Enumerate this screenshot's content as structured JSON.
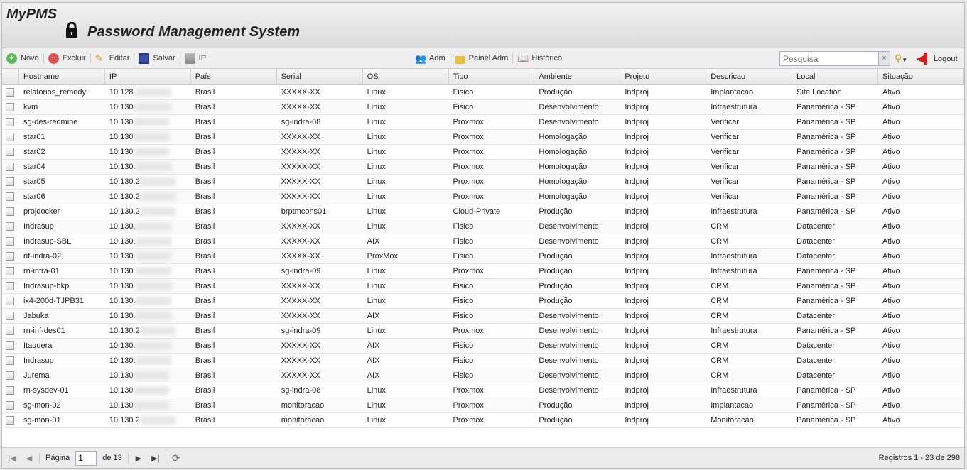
{
  "header": {
    "brand": "MyPMS",
    "system_title": "Password Management System"
  },
  "toolbar": {
    "novo": "Novo",
    "excluir": "Excluir",
    "editar": "Editar",
    "salvar": "Salvar",
    "ip": "IP",
    "adm": "Adm",
    "painel_adm": "Painel Adm",
    "historico": "Histórico",
    "search_placeholder": "Pesquisa",
    "logout": "Logout"
  },
  "columns": [
    "Hostname",
    "IP",
    "País",
    "Serial",
    "OS",
    "Tipo",
    "Ambiente",
    "Projeto",
    "Descricao",
    "Local",
    "Situação"
  ],
  "rows": [
    [
      "relatorios_remedy",
      "10.128.",
      "Brasil",
      "XXXXX-XX",
      "Linux",
      "Fisico",
      "Produção",
      "Indproj",
      "Implantacao",
      "Site Location",
      "Ativo"
    ],
    [
      "kvm",
      "10.130.",
      "Brasil",
      "XXXXX-XX",
      "Linux",
      "Fisico",
      "Desenvolvimento",
      "Indproj",
      "Infraestrutura",
      "Panamérica - SP",
      "Ativo"
    ],
    [
      "sg-des-redmine",
      "10.130",
      "Brasil",
      "sg-indra-08",
      "Linux",
      "Proxmox",
      "Desenvolvimento",
      "Indproj",
      "Verificar",
      "Panamérica - SP",
      "Ativo"
    ],
    [
      "star01",
      "10.130",
      "Brasil",
      "XXXXX-XX",
      "Linux",
      "Proxmox",
      "Homologação",
      "Indproj",
      "Verificar",
      "Panamérica - SP",
      "Ativo"
    ],
    [
      "star02",
      "10.130",
      "Brasil",
      "XXXXX-XX",
      "Linux",
      "Proxmox",
      "Homologação",
      "Indproj",
      "Verificar",
      "Panamérica - SP",
      "Ativo"
    ],
    [
      "star04",
      "10.130.",
      "Brasil",
      "XXXXX-XX",
      "Linux",
      "Proxmox",
      "Homologação",
      "Indproj",
      "Verificar",
      "Panamérica - SP",
      "Ativo"
    ],
    [
      "star05",
      "10.130.2",
      "Brasil",
      "XXXXX-XX",
      "Linux",
      "Proxmox",
      "Homologação",
      "Indproj",
      "Verificar",
      "Panamérica - SP",
      "Ativo"
    ],
    [
      "star06",
      "10.130.2",
      "Brasil",
      "XXXXX-XX",
      "Linux",
      "Proxmox",
      "Homologação",
      "Indproj",
      "Verificar",
      "Panamérica - SP",
      "Ativo"
    ],
    [
      "projdocker",
      "10.130.2",
      "Brasil",
      "brptmcons01",
      "Linux",
      "Cloud-Private",
      "Produção",
      "Indproj",
      "Infraestrutura",
      "Panamérica - SP",
      "Ativo"
    ],
    [
      "Indrasup",
      "10.130.",
      "Brasil",
      "XXXXX-XX",
      "Linux",
      "Fisico",
      "Desenvolvimento",
      "Indproj",
      "CRM",
      "Datacenter",
      "Ativo"
    ],
    [
      "Indrasup-SBL",
      "10.130.",
      "Brasil",
      "XXXXX-XX",
      "AIX",
      "Fisico",
      "Desenvolvimento",
      "Indproj",
      "CRM",
      "Datacenter",
      "Ativo"
    ],
    [
      "rif-indra-02",
      "10.130.",
      "Brasil",
      "XXXXX-XX",
      "ProxMox",
      "Fisico",
      "Produção",
      "Indproj",
      "Infraestrutura",
      "Datacenter",
      "Ativo"
    ],
    [
      "rn-infra-01",
      "10.130.",
      "Brasil",
      "sg-indra-09",
      "Linux",
      "Proxmox",
      "Produção",
      "Indproj",
      "Infraestrutura",
      "Panamérica - SP",
      "Ativo"
    ],
    [
      "Indrasup-bkp",
      "10.130.",
      "Brasil",
      "XXXXX-XX",
      "Linux",
      "Fisico",
      "Produção",
      "Indproj",
      "CRM",
      "Panamérica - SP",
      "Ativo"
    ],
    [
      "ix4-200d-TJPB31",
      "10.130.",
      "Brasil",
      "XXXXX-XX",
      "Linux",
      "Fisico",
      "Produção",
      "Indproj",
      "CRM",
      "Panamérica - SP",
      "Ativo"
    ],
    [
      "Jabuka",
      "10.130.",
      "Brasil",
      "XXXXX-XX",
      "AIX",
      "Fisico",
      "Desenvolvimento",
      "Indproj",
      "CRM",
      "Datacenter",
      "Ativo"
    ],
    [
      "rn-inf-des01",
      "10.130.2",
      "Brasil",
      "sg-indra-09",
      "Linux",
      "Proxmox",
      "Desenvolvimento",
      "Indproj",
      "Infraestrutura",
      "Panamérica - SP",
      "Ativo"
    ],
    [
      "Itaquera",
      "10.130.",
      "Brasil",
      "XXXXX-XX",
      "AIX",
      "Fisico",
      "Desenvolvimento",
      "Indproj",
      "CRM",
      "Datacenter",
      "Ativo"
    ],
    [
      "Indrasup",
      "10.130.",
      "Brasil",
      "XXXXX-XX",
      "AIX",
      "Fisico",
      "Desenvolvimento",
      "Indproj",
      "CRM",
      "Datacenter",
      "Ativo"
    ],
    [
      "Jurema",
      "10.130",
      "Brasil",
      "XXXXX-XX",
      "AIX",
      "Fisico",
      "Desenvolvimento",
      "Indproj",
      "CRM",
      "Datacenter",
      "Ativo"
    ],
    [
      "rn-sysdev-01",
      "10.130",
      "Brasil",
      "sg-indra-08",
      "Linux",
      "Proxmox",
      "Desenvolvimento",
      "Indproj",
      "Infraestrutura",
      "Panamérica - SP",
      "Ativo"
    ],
    [
      "sg-mon-02",
      "10.130",
      "Brasil",
      "monitoracao",
      "Linux",
      "Proxmox",
      "Produção",
      "Indproj",
      "Implantacao",
      "Panamérica - SP",
      "Ativo"
    ],
    [
      "sg-mon-01",
      "10.130.2",
      "Brasil",
      "monitoracao",
      "Linux",
      "Proxmox",
      "Produção",
      "Indproj",
      "Monitoracao",
      "Panamérica - SP",
      "Ativo"
    ]
  ],
  "pager": {
    "page_label": "Página",
    "page_value": "1",
    "of_label": "de 13",
    "records": "Registros 1 - 23 de 298"
  }
}
